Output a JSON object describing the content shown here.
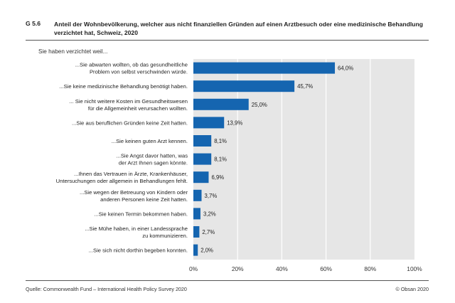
{
  "figure": {
    "id": "G 5.6",
    "title": "Anteil der Wohnbevölkerung, welcher aus nicht finanziellen Gründen auf einen Arztbesuch oder eine medizinische Behandlung verzichtet hat, Schweiz, 2020",
    "subheading": "Sie haben verzichtet weil...",
    "source": "Quelle: Commonwealth Fund – International Health Policy Survey 2020",
    "copyright": "© Obsan 2020"
  },
  "colors": {
    "bar": "#1565b0",
    "plot_background": "#e6e6e6",
    "gridline": "#ffffff"
  },
  "chart_data": {
    "type": "bar",
    "orientation": "horizontal",
    "title": "Anteil der Wohnbevölkerung, welcher aus nicht finanziellen Gründen auf einen Arztbesuch oder eine medizinische Behandlung verzichtet hat, Schweiz, 2020",
    "categories": [
      [
        "...Sie abwarten wollten, ob das gesundheitliche",
        "Problem von selbst verschwinden würde."
      ],
      [
        "...Sie keine medizinische Behandlung benötigt haben."
      ],
      [
        "... Sie nicht weitere Kosten im Gesundheitswesen",
        "für die Allgemeinheit verursachen wollten."
      ],
      [
        "...Sie aus beruflichen Gründen keine Zeit hatten."
      ],
      [
        "...Sie keinen guten Arzt kennen."
      ],
      [
        "...Sie Angst davor hatten, was",
        "der Arzt Ihnen sagen könnte."
      ],
      [
        "...Ihnen das Vertrauen in Ärzte, Krankenhäuser,",
        "Untersuchungen oder allgemein in Behandlungen fehlt."
      ],
      [
        "...Sie wegen der Betreuung von Kindern oder",
        "anderen Personen keine Zeit hatten."
      ],
      [
        "...Sie keinen Termin bekommen haben."
      ],
      [
        "...Sie Mühe haben, in einer Landessprache",
        "zu kommunizieren."
      ],
      [
        "...Sie sich nicht dorthin begeben konnten."
      ]
    ],
    "values": [
      64.0,
      45.7,
      25.0,
      13.9,
      8.1,
      8.1,
      6.9,
      3.7,
      3.2,
      2.7,
      2.0
    ],
    "value_labels": [
      "64,0%",
      "45,7%",
      "25,0%",
      "13,9%",
      "8,1%",
      "8,1%",
      "6,9%",
      "3,7%",
      "3,2%",
      "2,7%",
      "2,0%"
    ],
    "xlim": [
      0,
      100
    ],
    "xticks": [
      0,
      20,
      40,
      60,
      80,
      100
    ],
    "xtick_labels": [
      "0%",
      "20%",
      "40%",
      "60%",
      "80%",
      "100%"
    ],
    "xlabel": "",
    "ylabel": "Sie haben verzichtet weil...",
    "grid": true,
    "legend": "none"
  }
}
